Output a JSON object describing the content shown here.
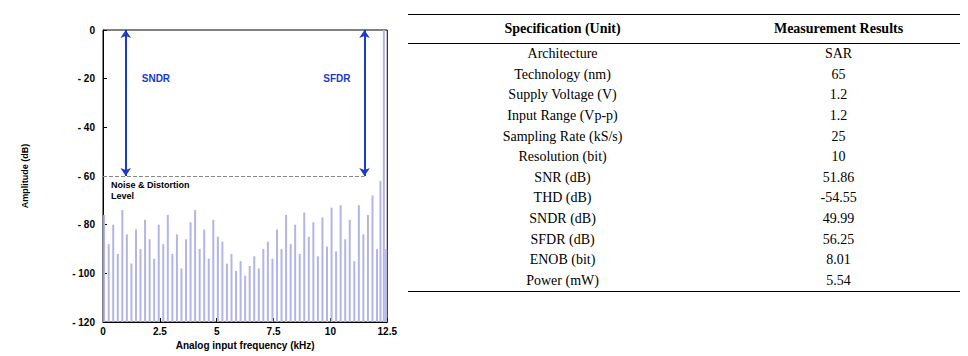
{
  "chart_data": {
    "type": "stem",
    "x_label": "Analog input frequency (kHz)",
    "y_label": "Amplitude (dB)",
    "color": "#b4b4e6",
    "x": [
      0.05,
      0.25,
      0.45,
      0.65,
      0.85,
      1.05,
      1.25,
      1.45,
      1.65,
      1.85,
      2.05,
      2.25,
      2.45,
      2.65,
      2.85,
      3.05,
      3.25,
      3.45,
      3.65,
      3.85,
      4.05,
      4.25,
      4.45,
      4.65,
      4.85,
      5.05,
      5.25,
      5.45,
      5.65,
      5.85,
      6.05,
      6.25,
      6.45,
      6.65,
      6.85,
      7.05,
      7.25,
      7.45,
      7.65,
      7.85,
      8.05,
      8.25,
      8.45,
      8.65,
      8.85,
      9.05,
      9.25,
      9.45,
      9.65,
      9.85,
      10.05,
      10.25,
      10.45,
      10.65,
      10.85,
      11.05,
      11.25,
      11.45,
      11.65,
      11.85,
      12.05,
      12.2,
      12.35,
      12.45
    ],
    "values": [
      -76,
      -88,
      -80,
      -92,
      -74,
      -84,
      -96,
      -82,
      -90,
      -78,
      -86,
      -94,
      -80,
      -88,
      -76,
      -92,
      -84,
      -98,
      -86,
      -79,
      -74,
      -90,
      -82,
      -94,
      -78,
      -85,
      -87,
      -96,
      -92,
      -99,
      -95,
      -101,
      -97,
      -93,
      -98,
      -90,
      -87,
      -94,
      -82,
      -90,
      -76,
      -88,
      -80,
      -92,
      -75,
      -85,
      -79,
      -93,
      -77,
      -89,
      -73,
      -91,
      -72,
      -86,
      -78,
      -95,
      -72,
      -84,
      -76,
      -68,
      -90,
      -62,
      0,
      -90
    ],
    "xlim": [
      0,
      12.5
    ],
    "xticks": [
      0,
      2.5,
      5,
      7.5,
      10,
      12.5
    ],
    "ylim": [
      -120,
      0
    ],
    "yticks": [
      {
        "value": -120,
        "label": "- 120"
      },
      {
        "value": -100,
        "label": "- 100"
      },
      {
        "value": -80,
        "label": "- 80"
      },
      {
        "value": -60,
        "label": "- 60"
      },
      {
        "value": -40,
        "label": "- 40"
      },
      {
        "value": -20,
        "label": "- 20"
      },
      0
    ],
    "grid": false,
    "annotations": [
      {
        "text": "SNDR",
        "x": 1,
        "y_from": 0,
        "y_to": -60,
        "color": "#1a3cc8"
      },
      {
        "text": "SFDR",
        "x": 11.5,
        "y_from": 0,
        "y_to": -60,
        "color": "#1a3cc8"
      },
      {
        "text": "Noise & Distortion Level",
        "y": -60,
        "color": "#888888"
      }
    ]
  },
  "table": {
    "header": [
      "Specification (Unit)",
      "Measurement Results"
    ],
    "rows": [
      [
        "Architecture",
        "SAR"
      ],
      [
        "Technology (nm)",
        "65"
      ],
      [
        "Supply Voltage (V)",
        "1.2"
      ],
      [
        "Input Range (Vp-p)",
        "1.2"
      ],
      [
        "Sampling Rate (kS/s)",
        "25"
      ],
      [
        "Resolution (bit)",
        "10"
      ],
      [
        "SNR (dB)",
        "51.86"
      ],
      [
        "THD (dB)",
        "-54.55"
      ],
      [
        "SNDR (dB)",
        "49.99"
      ],
      [
        "SFDR (dB)",
        "56.25"
      ],
      [
        "ENOB (bit)",
        "8.01"
      ],
      [
        "Power (mW)",
        "5.54"
      ]
    ]
  }
}
